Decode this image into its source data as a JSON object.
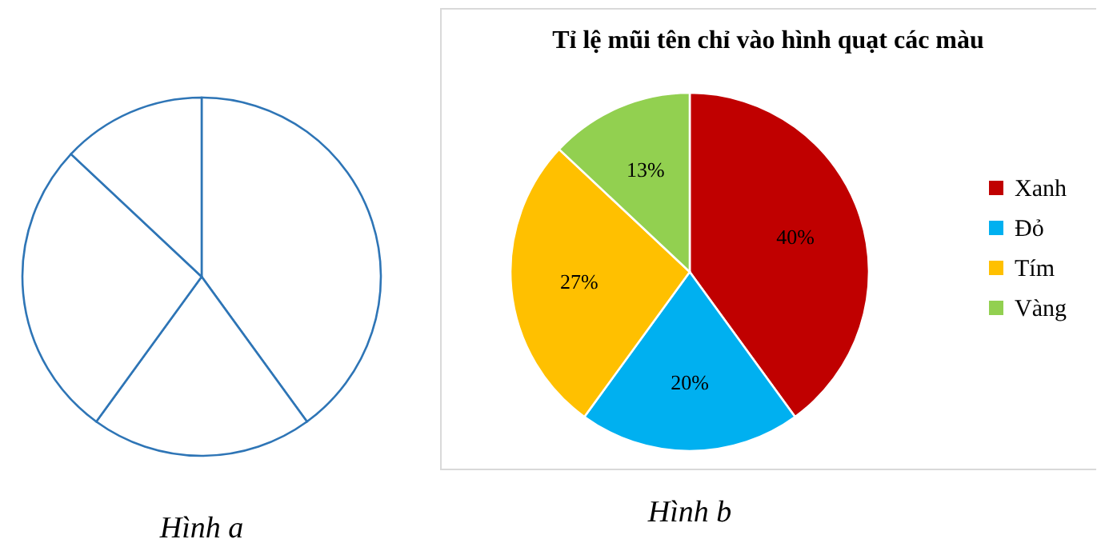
{
  "chart_data": [
    {
      "type": "pie",
      "categories": [
        null,
        null,
        null,
        null
      ],
      "values": [
        40,
        20,
        27,
        13
      ],
      "colors": [
        "#ffffff",
        "#ffffff",
        "#ffffff",
        "#ffffff"
      ],
      "legend": false,
      "annotations": [
        "Hình a"
      ]
    },
    {
      "type": "pie",
      "title": "Tỉ lệ mũi tên chỉ vào hình quạt các màu",
      "categories": [
        "Xanh",
        "Đỏ",
        "Tím",
        "Vàng"
      ],
      "values": [
        40,
        20,
        27,
        13
      ],
      "colors": [
        "#c00000",
        "#00b0f0",
        "#ffc000",
        "#92d050"
      ],
      "value_labels": [
        "40%",
        "20%",
        "27%",
        "13%"
      ],
      "legend": "right",
      "annotations": [
        "Hình b"
      ]
    }
  ]
}
